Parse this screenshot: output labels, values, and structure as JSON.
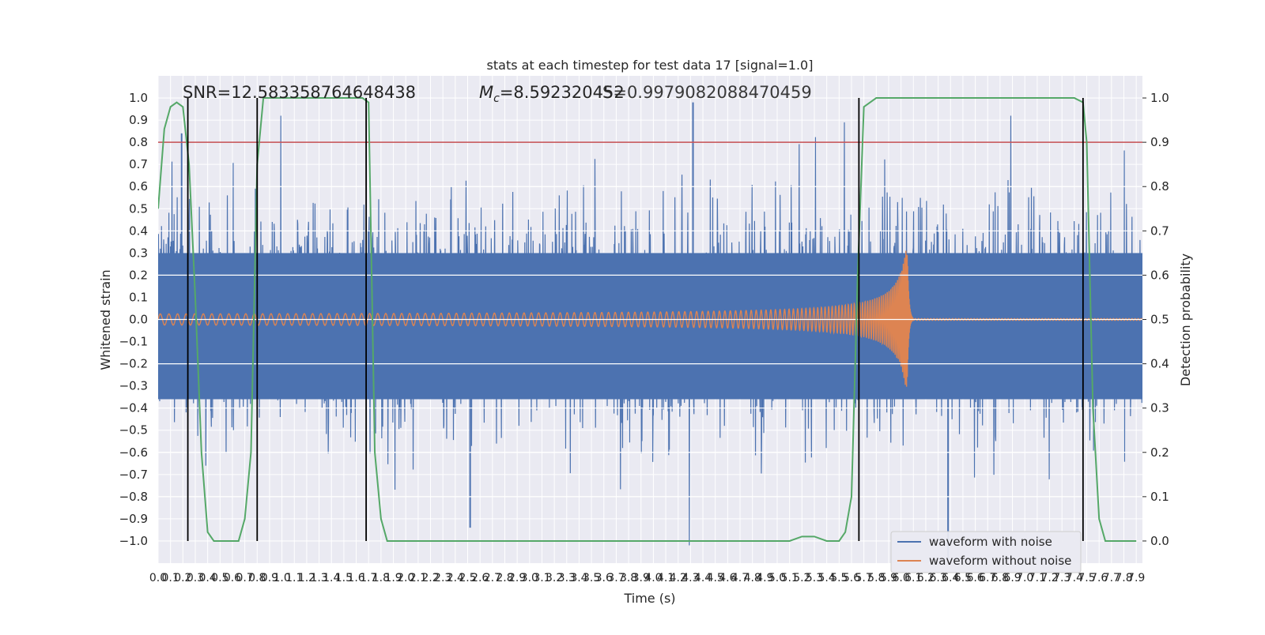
{
  "chart_data": {
    "type": "line",
    "title": "stats at each timestep for test data 17 [signal=1.0]",
    "xlabel": "Time (s)",
    "ylabel": "Whitened strain",
    "y2label": "Detection probability",
    "xlim": [
      0.0,
      7.95
    ],
    "ylim": [
      -1.1,
      1.1
    ],
    "y2lim": [
      -0.05,
      1.05
    ],
    "x_ticks": [
      0.0,
      0.1,
      0.2,
      0.3,
      0.4,
      0.5,
      0.6,
      0.7,
      0.8,
      0.9,
      1.0,
      1.1,
      1.2,
      1.3,
      1.4,
      1.5,
      1.6,
      1.7,
      1.8,
      1.9,
      2.0,
      2.1,
      2.2,
      2.3,
      2.4,
      2.5,
      2.6,
      2.7,
      2.8,
      2.9,
      3.0,
      3.1,
      3.2,
      3.3,
      3.4,
      3.5,
      3.6,
      3.7,
      3.8,
      3.9,
      4.0,
      4.1,
      4.2,
      4.3,
      4.4,
      4.5,
      4.6,
      4.7,
      4.8,
      4.9,
      5.0,
      5.1,
      5.2,
      5.3,
      5.4,
      5.5,
      5.6,
      5.7,
      5.8,
      5.9,
      6.0,
      6.1,
      6.2,
      6.3,
      6.4,
      6.5,
      6.6,
      6.7,
      6.8,
      6.9,
      7.0,
      7.1,
      7.2,
      7.3,
      7.4,
      7.5,
      7.6,
      7.7,
      7.8,
      7.9
    ],
    "y_ticks": [
      -1.0,
      -0.9,
      -0.8,
      -0.7,
      -0.6,
      -0.5,
      -0.4,
      -0.3,
      -0.2,
      -0.1,
      0.0,
      0.1,
      0.2,
      0.3,
      0.4,
      0.5,
      0.6,
      0.7,
      0.8,
      0.9,
      1.0
    ],
    "y2_ticks": [
      0.0,
      0.1,
      0.2,
      0.3,
      0.4,
      0.5,
      0.6,
      0.7,
      0.8,
      0.9,
      1.0
    ],
    "grid": true,
    "legend_position": "bottom-right",
    "annotations": {
      "snr": "SNR=12.583358764648438",
      "mc_symbol": "M",
      "mc_sub": "c",
      "mc_value": "=8.592320452",
      "second_value": "=0.9979082088470459",
      "second_prefix": "S"
    },
    "threshold": {
      "value": 0.9,
      "color": "#c44e52"
    },
    "vertical_markers": [
      0.24,
      0.8,
      1.68,
      5.66,
      7.47
    ],
    "detection_probability": {
      "name": "",
      "color": "#55a868",
      "x": [
        0.0,
        0.05,
        0.1,
        0.15,
        0.2,
        0.25,
        0.3,
        0.35,
        0.4,
        0.45,
        0.5,
        0.55,
        0.6,
        0.65,
        0.7,
        0.75,
        0.8,
        0.85,
        0.9,
        1.0,
        1.6,
        1.65,
        1.7,
        1.75,
        1.8,
        1.85,
        1.9,
        2.2,
        2.3,
        2.4,
        2.5,
        3.0,
        4.0,
        5.0,
        5.1,
        5.2,
        5.3,
        5.4,
        5.45,
        5.5,
        5.55,
        5.6,
        5.65,
        5.7,
        5.8,
        7.4,
        7.47,
        7.5,
        7.55,
        7.6,
        7.65,
        7.7,
        7.9
      ],
      "y": [
        0.75,
        0.93,
        0.98,
        0.99,
        0.98,
        0.85,
        0.55,
        0.2,
        0.02,
        0.0,
        0.0,
        0.0,
        0.0,
        0.0,
        0.05,
        0.2,
        0.85,
        1.0,
        1.0,
        1.0,
        1.0,
        1.0,
        0.99,
        0.2,
        0.05,
        0.0,
        0.0,
        0.0,
        0.0,
        0.0,
        0.0,
        0.0,
        0.0,
        0.0,
        0.0,
        0.01,
        0.01,
        0.0,
        0.0,
        0.0,
        0.02,
        0.1,
        0.6,
        0.98,
        1.0,
        1.0,
        0.99,
        0.9,
        0.3,
        0.05,
        0.0,
        0.0,
        0.0
      ]
    },
    "series": [
      {
        "name": "waveform with noise",
        "color": "#4c72b0",
        "noise_amplitude": 0.42,
        "spikes": [
          {
            "x": 4.32,
            "y": 0.98
          },
          {
            "x": 0.19,
            "y": 0.84
          },
          {
            "x": 6.38,
            "y": -1.08
          },
          {
            "x": 2.52,
            "y": -0.94
          }
        ]
      },
      {
        "name": "waveform without noise",
        "color": "#dd8452",
        "chirp_start_amplitude": 0.02,
        "chirp_peak_amplitude": 0.36,
        "merger_time": 6.05,
        "ringdown_end": 6.1
      }
    ]
  }
}
